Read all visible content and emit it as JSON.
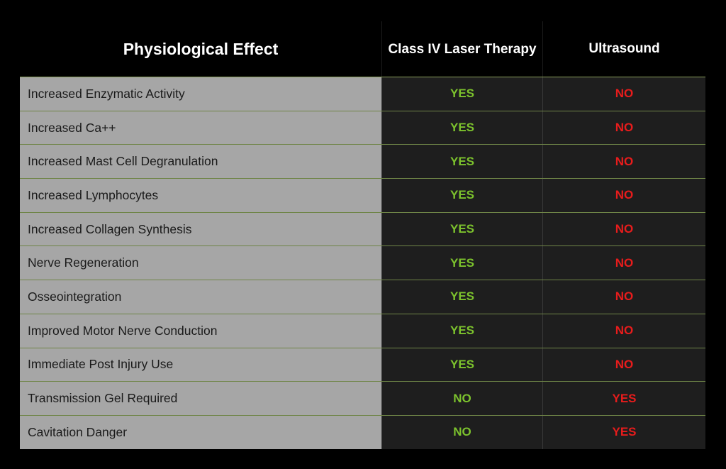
{
  "header": {
    "effect": "Physiological Effect",
    "laser": "Class IV Laser Therapy",
    "ultrasound": "Ultrasound"
  },
  "colors": {
    "laser_value": "#7cc22d",
    "ultrasound_value": "#e81c1c",
    "effect_cell_bg": "#a6a6a6",
    "value_cell_bg": "#1e1e1e",
    "row_divider": "#6f8547"
  },
  "rows": [
    {
      "effect": "Increased Enzymatic Activity",
      "laser": "YES",
      "ultrasound": "NO"
    },
    {
      "effect": "Increased Ca++",
      "laser": "YES",
      "ultrasound": "NO"
    },
    {
      "effect": "Increased Mast Cell Degranulation",
      "laser": "YES",
      "ultrasound": "NO"
    },
    {
      "effect": "Increased Lymphocytes",
      "laser": "YES",
      "ultrasound": "NO"
    },
    {
      "effect": "Increased Collagen Synthesis",
      "laser": "YES",
      "ultrasound": "NO"
    },
    {
      "effect": "Nerve Regeneration",
      "laser": "YES",
      "ultrasound": "NO"
    },
    {
      "effect": "Osseointegration",
      "laser": "YES",
      "ultrasound": "NO"
    },
    {
      "effect": "Improved Motor Nerve Conduction",
      "laser": "YES",
      "ultrasound": "NO"
    },
    {
      "effect": "Immediate Post Injury Use",
      "laser": "YES",
      "ultrasound": "NO"
    },
    {
      "effect": "Transmission Gel Required",
      "laser": "NO",
      "ultrasound": "YES"
    },
    {
      "effect": "Cavitation Danger",
      "laser": "NO",
      "ultrasound": "YES"
    }
  ]
}
